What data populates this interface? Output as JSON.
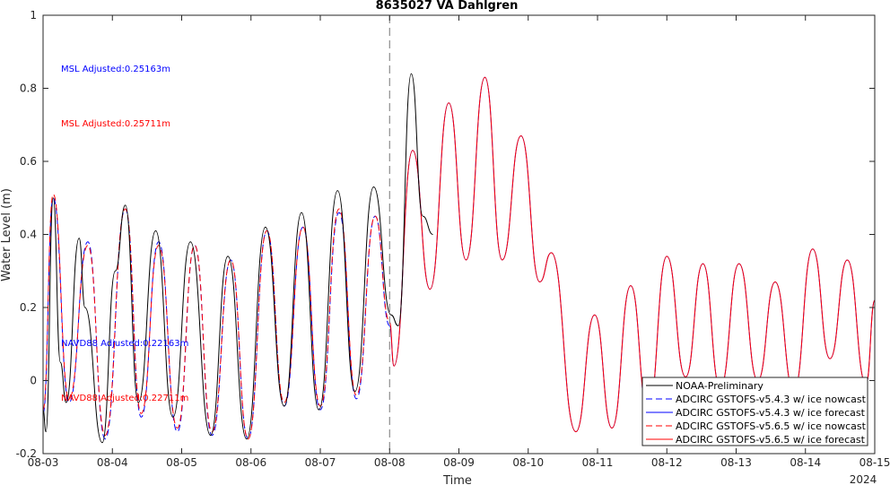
{
  "chart_data": {
    "type": "line",
    "title": "8635027 VA Dahlgren",
    "xlabel": "Time",
    "ylabel": "Water Level (m)",
    "year_label": "2024",
    "xlim": [
      "2024-08-03 00:00",
      "2024-08-15 00:00"
    ],
    "ylim": [
      -0.2,
      1.0
    ],
    "x_ticks": [
      "08-03",
      "08-04",
      "08-05",
      "08-06",
      "08-07",
      "08-08",
      "08-09",
      "08-10",
      "08-11",
      "08-12",
      "08-13",
      "08-14",
      "08-15"
    ],
    "y_ticks": [
      "-0.2",
      "0",
      "0.2",
      "0.4",
      "0.6",
      "0.8",
      "1"
    ],
    "grid": false,
    "legend_position": "bottom-right",
    "nowcast_end": "2024-08-08 00:00",
    "annotations": [
      {
        "text": "MSL Adjusted:0.25163m",
        "color": "#0000ff"
      },
      {
        "text": "MSL Adjusted:0.25711m",
        "color": "#ff0000"
      },
      {
        "text": "NAVD88 Adjusted:0.22163m",
        "color": "#0000ff"
      },
      {
        "text": "NAVD88 Adjusted:0.22711m",
        "color": "#ff0000"
      }
    ],
    "series": [
      {
        "name": "NOAA-Preliminary",
        "color": "#000000",
        "style": "solid",
        "points": [
          [
            "2024-08-03 00:00",
            -0.08
          ],
          [
            "2024-08-03 01:00",
            -0.14
          ],
          [
            "2024-08-03 03:30",
            0.5
          ],
          [
            "2024-08-03 06:00",
            0.05
          ],
          [
            "2024-08-03 08:00",
            -0.06
          ],
          [
            "2024-08-03 12:30",
            0.39
          ],
          [
            "2024-08-03 14:30",
            0.2
          ],
          [
            "2024-08-03 20:30",
            -0.17
          ],
          [
            "2024-08-04 01:00",
            0.3
          ],
          [
            "2024-08-04 04:30",
            0.48
          ],
          [
            "2024-08-04 09:00",
            -0.06
          ],
          [
            "2024-08-04 15:00",
            0.41
          ],
          [
            "2024-08-04 21:00",
            -0.1
          ],
          [
            "2024-08-05 03:00",
            0.38
          ],
          [
            "2024-08-05 10:00",
            -0.15
          ],
          [
            "2024-08-05 16:00",
            0.34
          ],
          [
            "2024-08-05 22:30",
            -0.16
          ],
          [
            "2024-08-06 05:00",
            0.42
          ],
          [
            "2024-08-06 11:30",
            -0.07
          ],
          [
            "2024-08-06 17:30",
            0.46
          ],
          [
            "2024-08-06 23:30",
            -0.08
          ],
          [
            "2024-08-07 06:00",
            0.52
          ],
          [
            "2024-08-07 12:00",
            -0.03
          ],
          [
            "2024-08-07 18:30",
            0.53
          ],
          [
            "2024-08-08 00:30",
            0.18
          ],
          [
            "2024-08-08 03:00",
            0.15
          ],
          [
            "2024-08-08 07:30",
            0.84
          ],
          [
            "2024-08-08 11:30",
            0.45
          ],
          [
            "2024-08-08 15:00",
            0.4
          ]
        ]
      },
      {
        "name": "ADCIRC GSTOFS-v5.4.3 w/ ice nowcast",
        "color": "#0000ff",
        "style": "dashed",
        "points": [
          [
            "2024-08-03 00:00",
            -0.09
          ],
          [
            "2024-08-03 03:30",
            0.5
          ],
          [
            "2024-08-03 09:00",
            -0.06
          ],
          [
            "2024-08-03 15:30",
            0.38
          ],
          [
            "2024-08-03 21:30",
            -0.16
          ],
          [
            "2024-08-04 04:30",
            0.47
          ],
          [
            "2024-08-04 10:00",
            -0.1
          ],
          [
            "2024-08-04 16:00",
            0.38
          ],
          [
            "2024-08-04 22:30",
            -0.14
          ],
          [
            "2024-08-05 04:30",
            0.37
          ],
          [
            "2024-08-05 10:30",
            -0.15
          ],
          [
            "2024-08-05 17:00",
            0.33
          ],
          [
            "2024-08-05 23:00",
            -0.16
          ],
          [
            "2024-08-06 05:30",
            0.41
          ],
          [
            "2024-08-06 11:30",
            -0.07
          ],
          [
            "2024-08-06 18:00",
            0.42
          ],
          [
            "2024-08-07 00:00",
            -0.08
          ],
          [
            "2024-08-07 06:30",
            0.46
          ],
          [
            "2024-08-07 12:30",
            -0.05
          ],
          [
            "2024-08-07 19:00",
            0.45
          ],
          [
            "2024-08-08 00:00",
            0.15
          ]
        ]
      },
      {
        "name": "ADCIRC GSTOFS-v5.4.3 w/ ice forecast",
        "color": "#0000ff",
        "style": "solid",
        "points": [
          [
            "2024-08-08 00:00",
            0.15
          ],
          [
            "2024-08-08 01:30",
            0.04
          ],
          [
            "2024-08-08 08:00",
            0.63
          ],
          [
            "2024-08-08 14:00",
            0.25
          ],
          [
            "2024-08-08 20:30",
            0.76
          ],
          [
            "2024-08-09 02:30",
            0.33
          ],
          [
            "2024-08-09 09:00",
            0.83
          ],
          [
            "2024-08-09 15:00",
            0.33
          ],
          [
            "2024-08-09 21:30",
            0.67
          ],
          [
            "2024-08-10 04:00",
            0.27
          ],
          [
            "2024-08-10 08:00",
            0.35
          ],
          [
            "2024-08-10 16:30",
            -0.14
          ],
          [
            "2024-08-10 23:00",
            0.18
          ],
          [
            "2024-08-11 05:00",
            -0.13
          ],
          [
            "2024-08-11 11:30",
            0.26
          ],
          [
            "2024-08-11 17:30",
            -0.09
          ],
          [
            "2024-08-12 00:00",
            0.34
          ],
          [
            "2024-08-12 06:30",
            0.01
          ],
          [
            "2024-08-12 12:30",
            0.32
          ],
          [
            "2024-08-12 18:30",
            -0.02
          ],
          [
            "2024-08-13 01:00",
            0.32
          ],
          [
            "2024-08-13 07:30",
            0.0
          ],
          [
            "2024-08-13 13:30",
            0.27
          ],
          [
            "2024-08-13 20:00",
            -0.03
          ],
          [
            "2024-08-14 02:30",
            0.36
          ],
          [
            "2024-08-14 08:30",
            0.06
          ],
          [
            "2024-08-14 14:30",
            0.33
          ],
          [
            "2024-08-14 21:00",
            -0.01
          ],
          [
            "2024-08-15 00:00",
            0.22
          ]
        ]
      },
      {
        "name": "ADCIRC GSTOFS-v5.6.5 w/ ice nowcast",
        "color": "#ff0000",
        "style": "dashed",
        "points": [
          [
            "2024-08-03 00:00",
            -0.08
          ],
          [
            "2024-08-03 03:30",
            0.51
          ],
          [
            "2024-08-03 09:00",
            -0.05
          ],
          [
            "2024-08-03 15:30",
            0.37
          ],
          [
            "2024-08-03 21:30",
            -0.15
          ],
          [
            "2024-08-04 04:30",
            0.47
          ],
          [
            "2024-08-04 10:00",
            -0.09
          ],
          [
            "2024-08-04 16:00",
            0.37
          ],
          [
            "2024-08-04 22:30",
            -0.13
          ],
          [
            "2024-08-05 04:30",
            0.37
          ],
          [
            "2024-08-05 10:30",
            -0.14
          ],
          [
            "2024-08-05 17:00",
            0.33
          ],
          [
            "2024-08-05 23:00",
            -0.16
          ],
          [
            "2024-08-06 05:30",
            0.41
          ],
          [
            "2024-08-06 11:30",
            -0.06
          ],
          [
            "2024-08-06 18:00",
            0.42
          ],
          [
            "2024-08-07 00:00",
            -0.07
          ],
          [
            "2024-08-07 06:30",
            0.47
          ],
          [
            "2024-08-07 12:30",
            -0.04
          ],
          [
            "2024-08-07 19:00",
            0.45
          ],
          [
            "2024-08-08 00:00",
            0.16
          ]
        ]
      },
      {
        "name": "ADCIRC GSTOFS-v5.6.5 w/ ice forecast",
        "color": "#ff0000",
        "style": "solid",
        "points": [
          [
            "2024-08-08 00:00",
            0.16
          ],
          [
            "2024-08-08 01:30",
            0.04
          ],
          [
            "2024-08-08 08:00",
            0.63
          ],
          [
            "2024-08-08 14:00",
            0.25
          ],
          [
            "2024-08-08 20:30",
            0.76
          ],
          [
            "2024-08-09 02:30",
            0.33
          ],
          [
            "2024-08-09 09:00",
            0.83
          ],
          [
            "2024-08-09 15:00",
            0.33
          ],
          [
            "2024-08-09 21:30",
            0.67
          ],
          [
            "2024-08-10 04:00",
            0.27
          ],
          [
            "2024-08-10 08:00",
            0.35
          ],
          [
            "2024-08-10 16:30",
            -0.14
          ],
          [
            "2024-08-10 23:00",
            0.18
          ],
          [
            "2024-08-11 05:00",
            -0.13
          ],
          [
            "2024-08-11 11:30",
            0.26
          ],
          [
            "2024-08-11 17:30",
            -0.09
          ],
          [
            "2024-08-12 00:00",
            0.34
          ],
          [
            "2024-08-12 06:30",
            0.01
          ],
          [
            "2024-08-12 12:30",
            0.32
          ],
          [
            "2024-08-12 18:30",
            -0.02
          ],
          [
            "2024-08-13 01:00",
            0.32
          ],
          [
            "2024-08-13 07:30",
            0.0
          ],
          [
            "2024-08-13 13:30",
            0.27
          ],
          [
            "2024-08-13 20:00",
            -0.03
          ],
          [
            "2024-08-14 02:30",
            0.36
          ],
          [
            "2024-08-14 08:30",
            0.06
          ],
          [
            "2024-08-14 14:30",
            0.33
          ],
          [
            "2024-08-14 21:00",
            -0.01
          ],
          [
            "2024-08-15 00:00",
            0.22
          ]
        ]
      }
    ]
  }
}
